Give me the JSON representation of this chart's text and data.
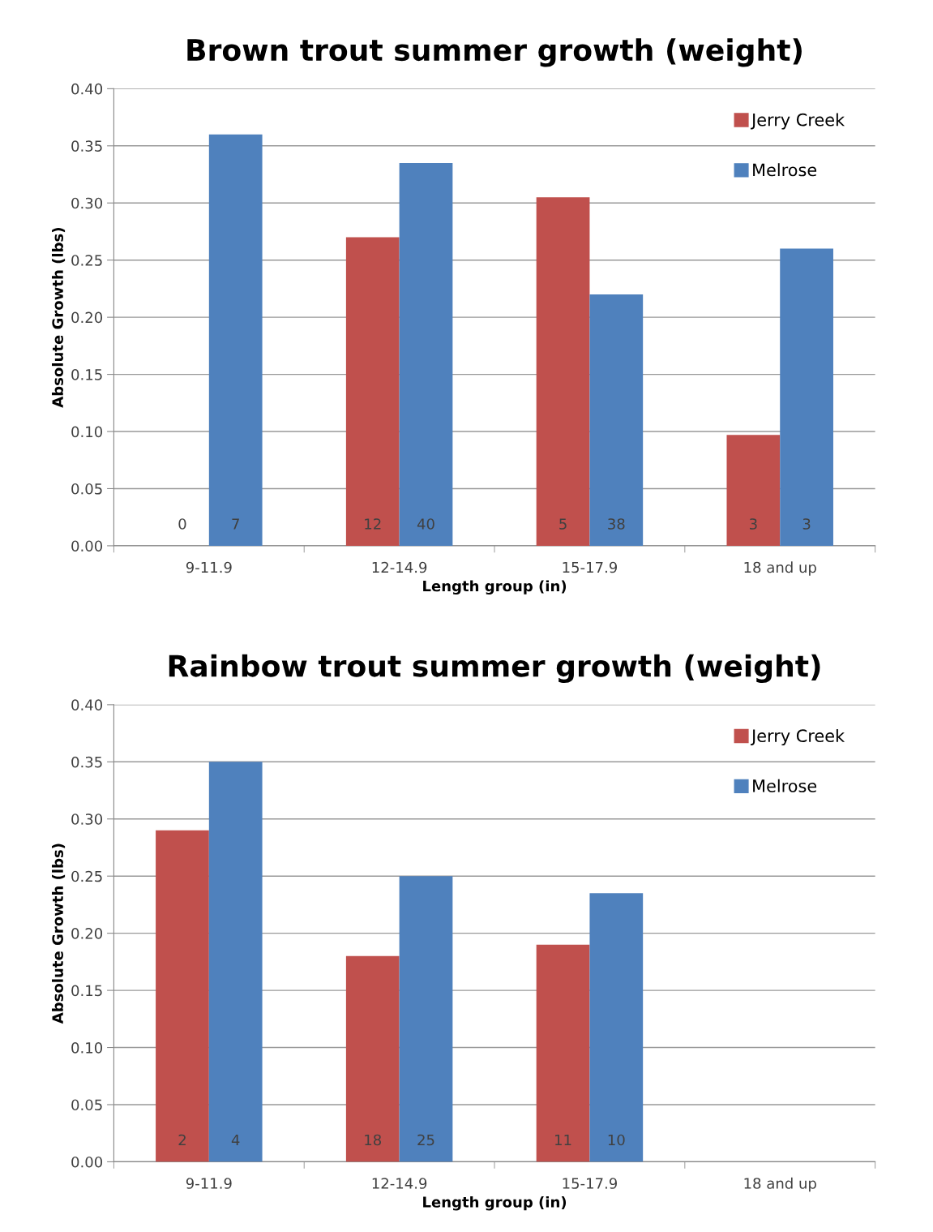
{
  "chart_data": [
    {
      "type": "bar",
      "title": "Brown trout summer growth (weight)",
      "xlabel": "Length group (in)",
      "ylabel": "Absolute Growth (lbs)",
      "categories": [
        "9-11.9",
        "12-14.9",
        "15-17.9",
        "18 and up"
      ],
      "series": [
        {
          "name": "Jerry Creek",
          "color": "#c0504d",
          "values": [
            0,
            0.27,
            0.305,
            0.097
          ]
        },
        {
          "name": "Melrose",
          "color": "#4f81bd",
          "values": [
            0.36,
            0.335,
            0.22,
            0.26
          ]
        }
      ],
      "annotations": [
        {
          "text": "0",
          "x": "9-11.9",
          "y": 0.018
        },
        {
          "text": "7",
          "x": "9-11.9",
          "y": 0.018
        },
        {
          "text": "12",
          "x": "12-14.9",
          "y": 0.018
        },
        {
          "text": "40",
          "x": "12-14.9",
          "y": 0.018
        },
        {
          "text": "5",
          "x": "15-17.9",
          "y": 0.018
        },
        {
          "text": "38",
          "x": "15-17.9",
          "y": 0.018
        },
        {
          "text": "3",
          "x": "18 and up",
          "y": 0.018
        },
        {
          "text": "3",
          "x": "18 and up",
          "y": 0.018
        }
      ],
      "ylim": [
        0,
        0.4
      ],
      "yticks": [
        {
          "value": 0,
          "label": "0.00"
        },
        {
          "value": 0.05,
          "label": "0.05"
        },
        {
          "value": 0.1,
          "label": "0.10"
        },
        {
          "value": 0.15,
          "label": "0.15"
        },
        {
          "value": 0.2,
          "label": "0.20"
        },
        {
          "value": 0.25,
          "label": "0.25"
        },
        {
          "value": 0.3,
          "label": "0.30"
        },
        {
          "value": 0.35,
          "label": "0.35"
        },
        {
          "value": 0.4,
          "label": "0.40"
        }
      ],
      "grid": "y",
      "legend": "top right"
    },
    {
      "type": "bar",
      "title": "Rainbow trout summer growth (weight)",
      "xlabel": "Length group (in)",
      "ylabel": "Absolute Growth (lbs)",
      "categories": [
        "9-11.9",
        "12-14.9",
        "15-17.9",
        "18 and up"
      ],
      "series": [
        {
          "name": "Jerry Creek",
          "color": "#c0504d",
          "values": [
            0.29,
            0.18,
            0.19,
            null
          ]
        },
        {
          "name": "Melrose",
          "color": "#4f81bd",
          "values": [
            0.35,
            0.25,
            0.235,
            null
          ]
        }
      ],
      "annotations": [
        {
          "text": "2",
          "x": "9-11.9",
          "y": 0.018
        },
        {
          "text": "4",
          "x": "9-11.9",
          "y": 0.018
        },
        {
          "text": "18",
          "x": "12-14.9",
          "y": 0.018
        },
        {
          "text": "25",
          "x": "12-14.9",
          "y": 0.018
        },
        {
          "text": "11",
          "x": "15-17.9",
          "y": 0.018
        },
        {
          "text": "10",
          "x": "15-17.9",
          "y": 0.018
        }
      ],
      "ylim": [
        0,
        0.4
      ],
      "yticks": [
        {
          "value": 0,
          "label": "0.00"
        },
        {
          "value": 0.05,
          "label": "0.05"
        },
        {
          "value": 0.1,
          "label": "0.10"
        },
        {
          "value": 0.15,
          "label": "0.15"
        },
        {
          "value": 0.2,
          "label": "0.20"
        },
        {
          "value": 0.25,
          "label": "0.25"
        },
        {
          "value": 0.3,
          "label": "0.30"
        },
        {
          "value": 0.35,
          "label": "0.35"
        },
        {
          "value": 0.4,
          "label": "0.40"
        }
      ],
      "grid": "y",
      "legend": "top right"
    }
  ]
}
